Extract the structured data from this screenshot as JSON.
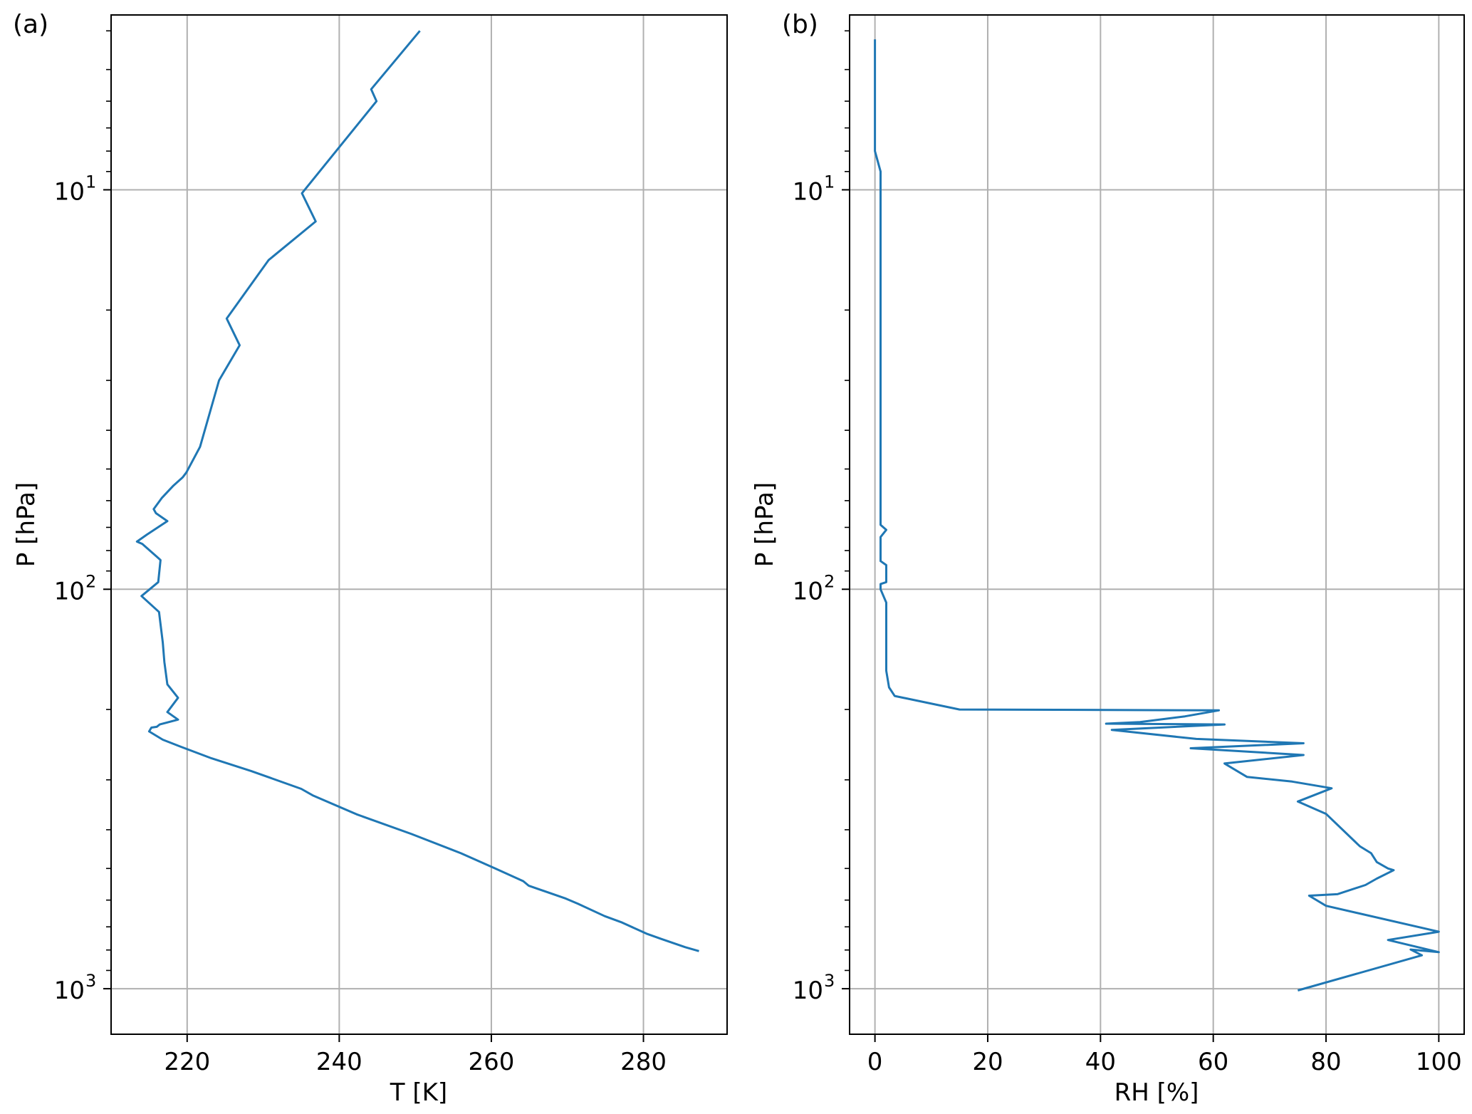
{
  "figure": {
    "panel_labels": [
      "(a)",
      "(b)"
    ]
  },
  "chart_data": [
    {
      "type": "line",
      "panel": "(a)",
      "xlabel": "T [K]",
      "ylabel": "P [hPa]",
      "xlim": [
        210,
        291
      ],
      "ylim": [
        1300,
        3.65
      ],
      "yscale": "log",
      "y_inverted": true,
      "grid": true,
      "xticks": [
        220,
        240,
        260,
        280
      ],
      "xtick_labels": [
        "220",
        "240",
        "260",
        "280"
      ],
      "yticks": [
        10,
        100,
        1000
      ],
      "ytick_labels": [
        {
          "base": "10",
          "exp": "1"
        },
        {
          "base": "10",
          "exp": "2"
        },
        {
          "base": "10",
          "exp": "3"
        }
      ],
      "series": [
        {
          "color": "#1f77b4",
          "points": [
            [
              250.6,
              4.0
            ],
            [
              244.2,
              5.6
            ],
            [
              244.9,
              6.0
            ],
            [
              235.1,
              10.2
            ],
            [
              236.9,
              12.0
            ],
            [
              230.7,
              15.0
            ],
            [
              225.2,
              21.0
            ],
            [
              226.9,
              24.5
            ],
            [
              224.2,
              30.0
            ],
            [
              221.7,
              44.0
            ],
            [
              219.9,
              51.0
            ],
            [
              219.4,
              52.5
            ],
            [
              218.2,
              55.0
            ],
            [
              216.7,
              59.0
            ],
            [
              215.6,
              63.0
            ],
            [
              215.9,
              64.5
            ],
            [
              217.4,
              67.5
            ],
            [
              214.7,
              73.0
            ],
            [
              213.4,
              76.0
            ],
            [
              214.1,
              77.0
            ],
            [
              216.2,
              83.5
            ],
            [
              216.5,
              84.5
            ],
            [
              216.2,
              96.0
            ],
            [
              214.0,
              104.0
            ],
            [
              216.3,
              114.0
            ],
            [
              216.8,
              136.0
            ],
            [
              217.0,
              152.0
            ],
            [
              217.4,
              173.0
            ],
            [
              218.8,
              187.0
            ],
            [
              217.4,
              203.0
            ],
            [
              218.8,
              212.0
            ],
            [
              216.4,
              218.0
            ],
            [
              216.0,
              221.0
            ],
            [
              215.3,
              222.0
            ],
            [
              215.0,
              227.0
            ],
            [
              216.8,
              238.0
            ],
            [
              219.2,
              248.0
            ],
            [
              223.2,
              265.0
            ],
            [
              228.4,
              285.0
            ],
            [
              235.0,
              316.0
            ],
            [
              236.5,
              328.0
            ],
            [
              242.3,
              366.0
            ],
            [
              249.5,
              410.0
            ],
            [
              256.0,
              458.0
            ],
            [
              260.4,
              499.0
            ],
            [
              264.2,
              538.0
            ],
            [
              264.9,
              552.0
            ],
            [
              269.8,
              595.0
            ],
            [
              271.4,
              613.0
            ],
            [
              274.9,
              658.0
            ],
            [
              277.2,
              683.0
            ],
            [
              280.4,
              728.0
            ],
            [
              282.4,
              751.0
            ],
            [
              285.5,
              787.0
            ],
            [
              287.3,
              805.0
            ]
          ]
        }
      ]
    },
    {
      "type": "line",
      "panel": "(b)",
      "xlabel": "RH [%]",
      "ylabel": "P [hPa]",
      "xlim": [
        -4.5,
        104.5
      ],
      "ylim": [
        1300,
        3.65
      ],
      "yscale": "log",
      "y_inverted": true,
      "grid": true,
      "xticks": [
        0,
        20,
        40,
        60,
        80,
        100
      ],
      "xtick_labels": [
        "0",
        "20",
        "40",
        "60",
        "80",
        "100"
      ],
      "yticks": [
        10,
        100,
        1000
      ],
      "ytick_labels": [
        {
          "base": "10",
          "exp": "1"
        },
        {
          "base": "10",
          "exp": "2"
        },
        {
          "base": "10",
          "exp": "3"
        }
      ],
      "series": [
        {
          "color": "#1f77b4",
          "points": [
            [
              0.0,
              4.2
            ],
            [
              0.0,
              8.0
            ],
            [
              1.0,
              9.0
            ],
            [
              1.0,
              69.0
            ],
            [
              2.0,
              71.0
            ],
            [
              1.0,
              74.0
            ],
            [
              1.0,
              85.0
            ],
            [
              2.0,
              87.0
            ],
            [
              2.0,
              96.0
            ],
            [
              1.0,
              97.0
            ],
            [
              1.0,
              100.0
            ],
            [
              2.0,
              108.0
            ],
            [
              2.0,
              160.0
            ],
            [
              2.5,
              176.0
            ],
            [
              3.5,
              185.0
            ],
            [
              15.0,
              200.0
            ],
            [
              61.0,
              201.0
            ],
            [
              55.0,
              208.0
            ],
            [
              47.0,
              215.0
            ],
            [
              41.0,
              217.0
            ],
            [
              62.0,
              218.0
            ],
            [
              42.0,
              225.0
            ],
            [
              57.0,
              237.0
            ],
            [
              76.0,
              243.0
            ],
            [
              56.0,
              250.0
            ],
            [
              76.0,
              260.0
            ],
            [
              62.0,
              273.0
            ],
            [
              66.0,
              295.0
            ],
            [
              74.0,
              303.0
            ],
            [
              81.0,
              315.0
            ],
            [
              75.0,
              340.0
            ],
            [
              80.0,
              365.0
            ],
            [
              86.0,
              440.0
            ],
            [
              88.0,
              458.0
            ],
            [
              89.0,
              482.0
            ],
            [
              91.0,
              500.0
            ],
            [
              92.0,
              505.0
            ],
            [
              89.0,
              530.0
            ],
            [
              87.0,
              550.0
            ],
            [
              82.0,
              580.0
            ],
            [
              77.0,
              585.0
            ],
            [
              80.0,
              620.0
            ],
            [
              100.0,
              720.0
            ],
            [
              91.0,
              755.0
            ],
            [
              100.0,
              810.0
            ],
            [
              95.0,
              798.0
            ],
            [
              97.0,
              825.0
            ],
            [
              75.0,
              1010.0
            ]
          ]
        }
      ]
    }
  ]
}
